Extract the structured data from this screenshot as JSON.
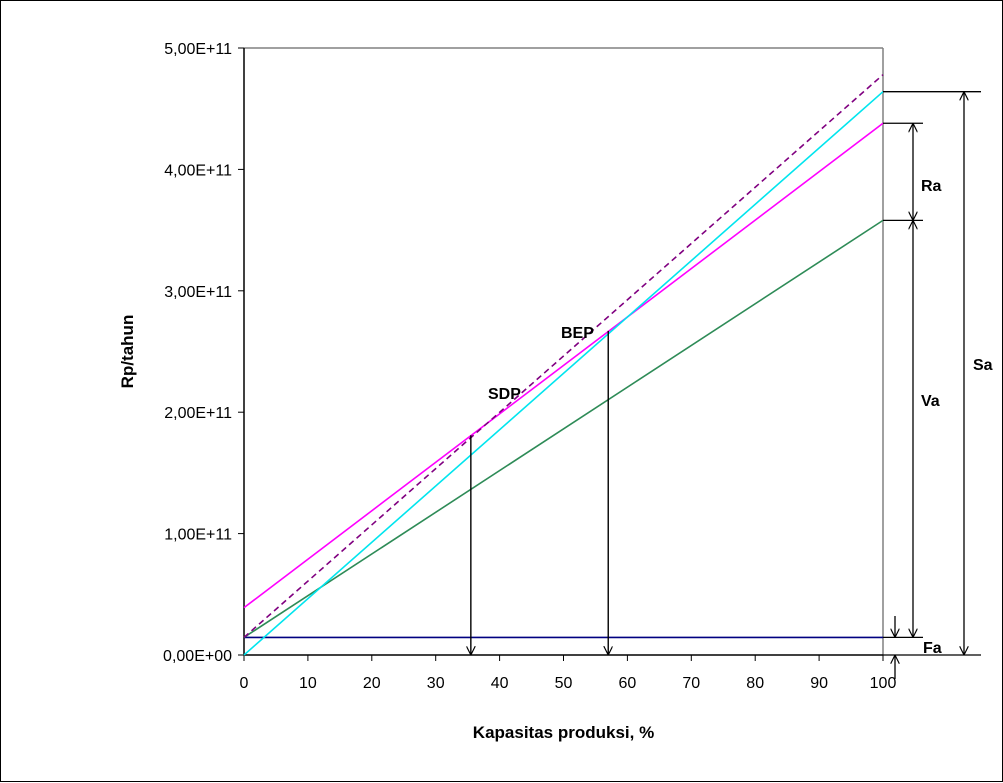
{
  "chart_data": {
    "type": "line",
    "xlabel": "Kapasitas produksi,  %",
    "ylabel": "Rp/tahun",
    "xlim": [
      0,
      100
    ],
    "ylim": [
      0,
      500000000000
    ],
    "x_ticks": [
      "0",
      "10",
      "20",
      "30",
      "40",
      "50",
      "60",
      "70",
      "80",
      "90",
      "100"
    ],
    "y_ticks": [
      "0,00E+00",
      "1,00E+11",
      "2,00E+11",
      "3,00E+11",
      "4,00E+11",
      "5,00E+11"
    ],
    "grid": false,
    "x_ticks_values": [
      0,
      10,
      20,
      30,
      40,
      50,
      60,
      70,
      80,
      90,
      100
    ],
    "y_ticks_values": [
      0,
      100000000000,
      200000000000,
      300000000000,
      400000000000,
      500000000000
    ],
    "series": [
      {
        "color": "#000080",
        "style": "solid",
        "x": [
          0,
          100
        ],
        "y": [
          14500000000,
          14500000000
        ]
      },
      {
        "color": "#2E8B57",
        "style": "solid",
        "x": [
          0,
          100
        ],
        "y": [
          14500000000,
          358000000000
        ]
      },
      {
        "color": "#FF00FF",
        "style": "solid",
        "x": [
          0,
          100
        ],
        "y": [
          39000000000,
          438000000000
        ]
      },
      {
        "color": "#00E5EE",
        "style": "solid",
        "x": [
          0,
          100
        ],
        "y": [
          0,
          464000000000
        ]
      },
      {
        "color": "#800080",
        "style": "dashed",
        "x": [
          0,
          100
        ],
        "y": [
          14500000000,
          478000000000
        ]
      }
    ],
    "annotations": {
      "bep": {
        "text": "BEP",
        "x": 57,
        "y": 267000000000
      },
      "sdp": {
        "text": "SDP",
        "x": 35.5,
        "y": 181000000000
      },
      "fa": {
        "text": "Fa"
      },
      "va": {
        "text": "Va"
      },
      "ra": {
        "text": "Ra"
      },
      "sa": {
        "text": "Sa"
      }
    }
  }
}
